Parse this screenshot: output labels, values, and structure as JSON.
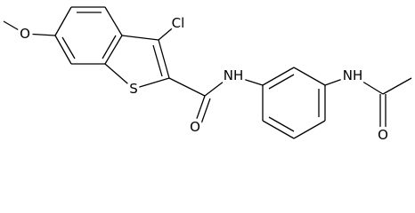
{
  "atoms": [
    {
      "label": "O"
    },
    {
      "label": "Cl"
    },
    {
      "label": "S"
    },
    {
      "label": "O"
    },
    {
      "label": "NH"
    },
    {
      "label": "NH"
    },
    {
      "label": "O"
    }
  ]
}
